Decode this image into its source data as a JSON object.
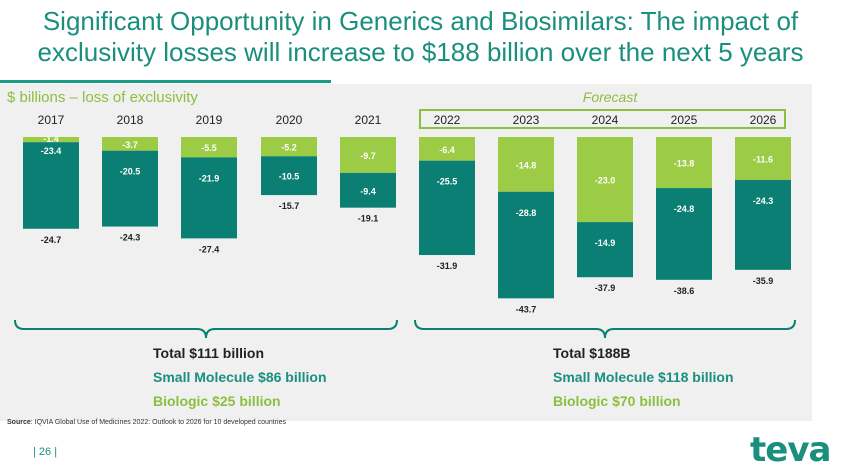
{
  "title": "Significant Opportunity in Generics and Biosimilars: The impact of exclusivity losses will increase to $188 billion over the next 5 years",
  "unit_label": "$ billions – loss of exclusivity",
  "forecast_label": "Forecast",
  "summary_left": {
    "total": "Total $111 billion",
    "small_molecule": "Small Molecule $86 billion",
    "biologic": "Biologic $25 billion"
  },
  "summary_right": {
    "total": "Total $188B",
    "small_molecule": "Small Molecule $118 billion",
    "biologic": "Biologic $70 billion"
  },
  "source": {
    "prefix": "Source",
    "text": ": IQVIA Global Use of Medicines 2022: Outlook to 2026 for 10 developed countries"
  },
  "page_number": "| 26 |",
  "logo_text": "teva",
  "colors": {
    "small_molecule": "#0b7f73",
    "biologic": "#9ccb45",
    "title": "#1a8f7d",
    "accent": "#8cbf3f"
  },
  "chart_data": {
    "type": "bar",
    "stacked": true,
    "categories": [
      "2017",
      "2018",
      "2019",
      "2020",
      "2021",
      "2022",
      "2023",
      "2024",
      "2025",
      "2026"
    ],
    "series": [
      {
        "values": [
          -23.4,
          -20.5,
          -21.9,
          -10.5,
          -9.4,
          -25.5,
          -28.8,
          -14.9,
          -24.8,
          -24.3
        ]
      },
      {
        "values": [
          -1.4,
          -3.7,
          -5.5,
          -5.2,
          -9.7,
          -6.4,
          -14.8,
          -23.0,
          -13.8,
          -11.6
        ]
      }
    ],
    "totals": [
      -24.7,
      -24.3,
      -27.4,
      -15.7,
      -19.1,
      -31.9,
      -43.7,
      -37.9,
      -38.6,
      -35.9
    ],
    "forecast_start": "2022",
    "ylim": [
      -45,
      0
    ],
    "grid": false,
    "legend": "none"
  }
}
